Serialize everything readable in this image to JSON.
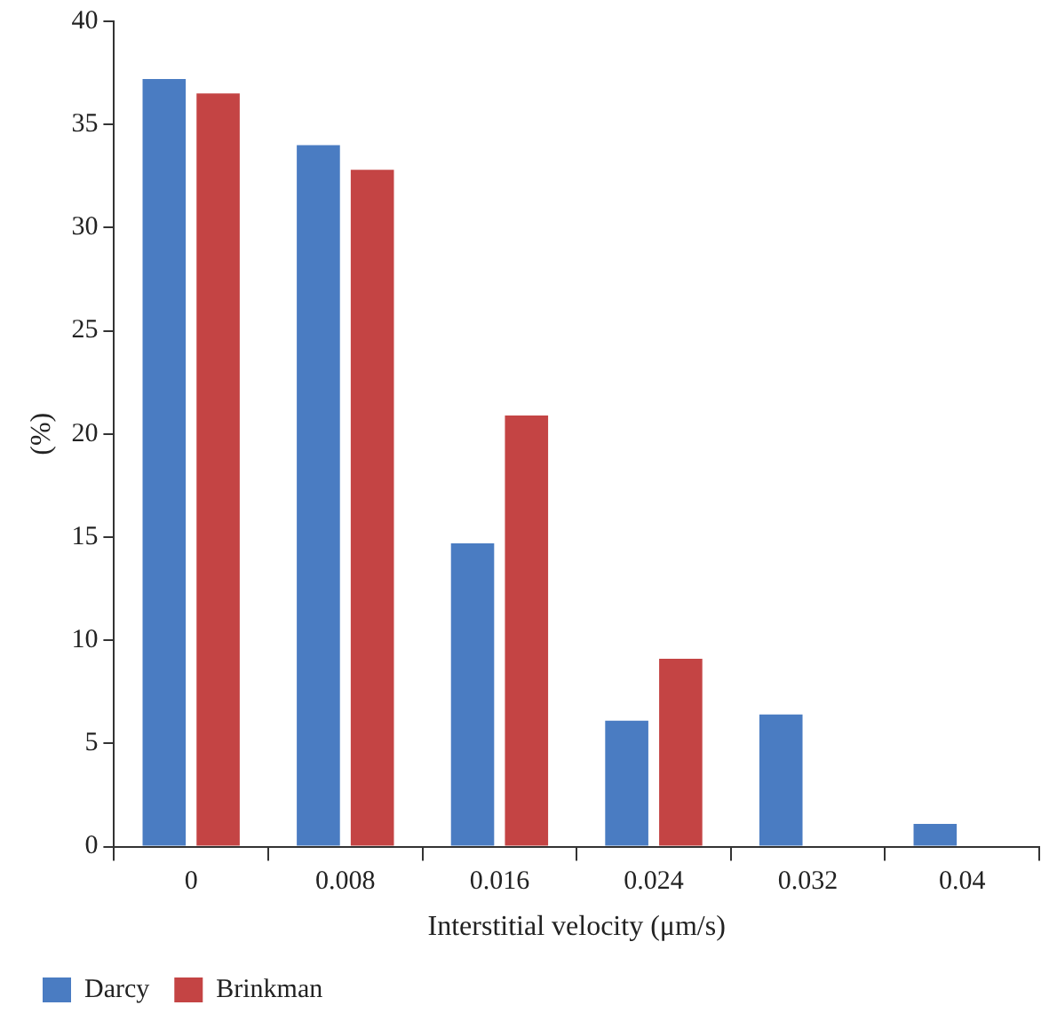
{
  "chart_data": {
    "type": "bar",
    "xlabel": "Interstitial velocity (μm/s)",
    "ylabel": "(%)",
    "categories": [
      "0",
      "0.008",
      "0.016",
      "0.024",
      "0.032",
      "0.04"
    ],
    "series": [
      {
        "name": "Darcy",
        "color": "#4a7cc2",
        "values": [
          37.2,
          34.0,
          14.7,
          6.1,
          6.4,
          1.1
        ]
      },
      {
        "name": "Brinkman",
        "color": "#c44444",
        "values": [
          36.5,
          32.8,
          20.9,
          9.1,
          0,
          0
        ]
      }
    ],
    "ylim": [
      0,
      40
    ],
    "yticks": [
      0,
      5,
      10,
      15,
      20,
      25,
      30,
      35,
      40
    ],
    "grid": false,
    "legend": "bottom left"
  }
}
